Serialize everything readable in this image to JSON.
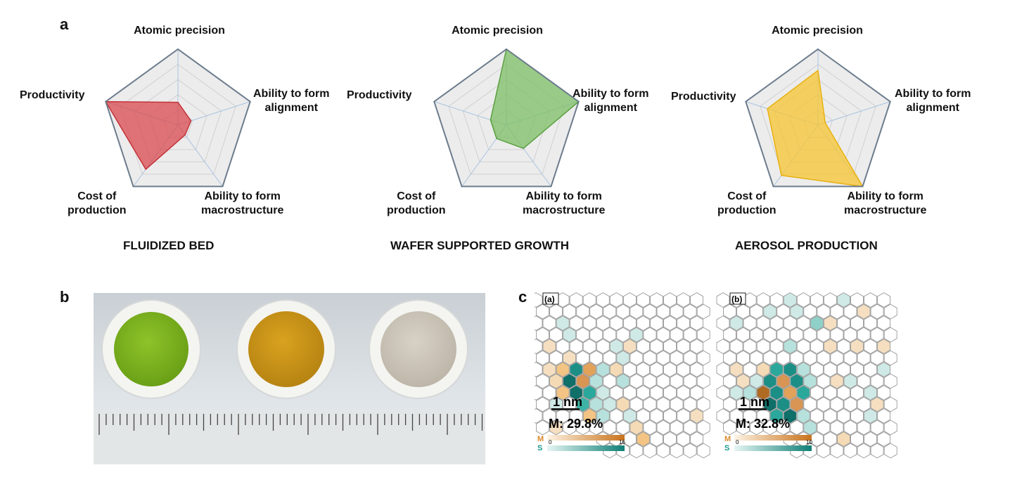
{
  "panel_labels": {
    "a": "a",
    "b": "b",
    "c": "c"
  },
  "radar_axes": {
    "top": "Atomic precision",
    "right_1": "Ability to form",
    "right_2": "alignment",
    "bottom_right_1": "Ability to form",
    "bottom_right_2": "macrostructure",
    "bottom_left_1": "Cost of",
    "bottom_left_2": "production",
    "left": "Productivity"
  },
  "radars": [
    {
      "caption": "FLUIDIZED BED",
      "fill": "#d94a4f",
      "stroke": "#c4333a",
      "values": [
        0.3,
        0.18,
        0.16,
        0.72,
        1.0
      ]
    },
    {
      "caption": "WAFER SUPPORTED GROWTH",
      "fill": "#7dbf65",
      "stroke": "#5aa040",
      "values": [
        1.0,
        1.0,
        0.38,
        0.22,
        0.22
      ]
    },
    {
      "caption": "AEROSOL PRODUCTION",
      "fill": "#f7c531",
      "stroke": "#e8b010",
      "values": [
        0.72,
        0.1,
        1.0,
        0.82,
        0.7
      ]
    }
  ],
  "colors": {
    "grid": "#d0d0d0",
    "spoke": "#a9c4e0",
    "outer": "#6c7c8c",
    "bg": "#ececec"
  },
  "hex_panels": [
    {
      "tag": "(a)",
      "scale_label": "1 nm",
      "metric": "M: 29.8%",
      "legend_m": "M",
      "legend_s": "S",
      "scale_min": "0",
      "scale_max": "16"
    },
    {
      "tag": "(b)",
      "scale_label": "1 nm",
      "metric": "M: 32.8%",
      "legend_m": "M",
      "legend_s": "S",
      "scale_min": "0",
      "scale_max": "10"
    }
  ]
}
